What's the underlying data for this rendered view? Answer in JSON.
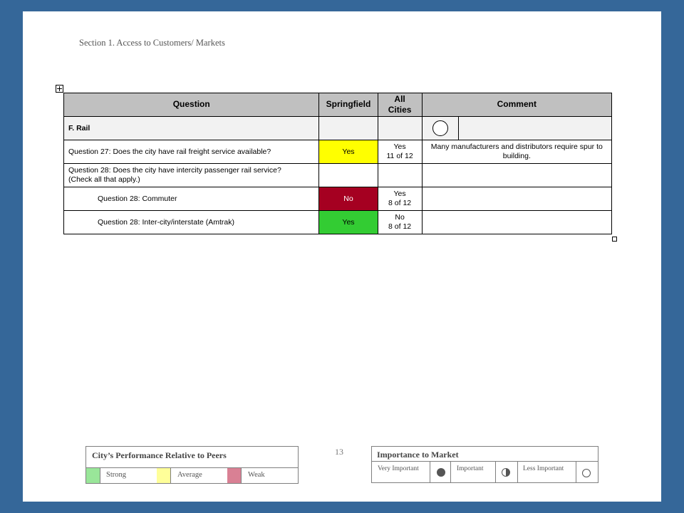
{
  "section_title": "Section 1. Access to Customers/ Markets",
  "table": {
    "headers": {
      "question": "Question",
      "springfield": "Springfield",
      "all_cities_1": "All",
      "all_cities_2": "Cities",
      "comment": "Comment"
    },
    "category": "F. Rail",
    "importance_icon": "empty-circle-icon",
    "rows": [
      {
        "question": "Question 27: Does the city have rail freight service available?",
        "springfield": "Yes",
        "all_cities_1": "Yes",
        "all_cities_2": "11 of 12",
        "comment": "Many manufacturers and distributors require spur to building.",
        "color": "#ffff00"
      },
      {
        "question_1": "Question 28: Does the city have intercity passenger rail service?",
        "question_2": "(Check all that apply.)",
        "springfield": "",
        "all_cities": "",
        "comment": ""
      },
      {
        "question": "Question 28: Commuter",
        "springfield": "No",
        "all_cities_1": "Yes",
        "all_cities_2": "8 of 12",
        "comment": "",
        "color": "#a50021"
      },
      {
        "question": "Question 28: Inter-city/interstate (Amtrak)",
        "springfield": "Yes",
        "all_cities_1": "No",
        "all_cities_2": "8 of 12",
        "comment": "",
        "color": "#33cc33"
      }
    ]
  },
  "legend_performance": {
    "title": "City’s Performance Relative to Peers",
    "items": [
      {
        "label": "Strong",
        "color": "#99e699"
      },
      {
        "label": "Average",
        "color": "#ffff99"
      },
      {
        "label": "Weak",
        "color": "#d98094"
      }
    ]
  },
  "page_number": "13",
  "legend_importance": {
    "title": "Importance to Market",
    "items": [
      {
        "label": "Very Important",
        "icon": "filled-circle-icon"
      },
      {
        "label": "Important",
        "icon": "half-circle-icon"
      },
      {
        "label": "Less Important",
        "icon": "empty-circle-icon"
      }
    ]
  }
}
